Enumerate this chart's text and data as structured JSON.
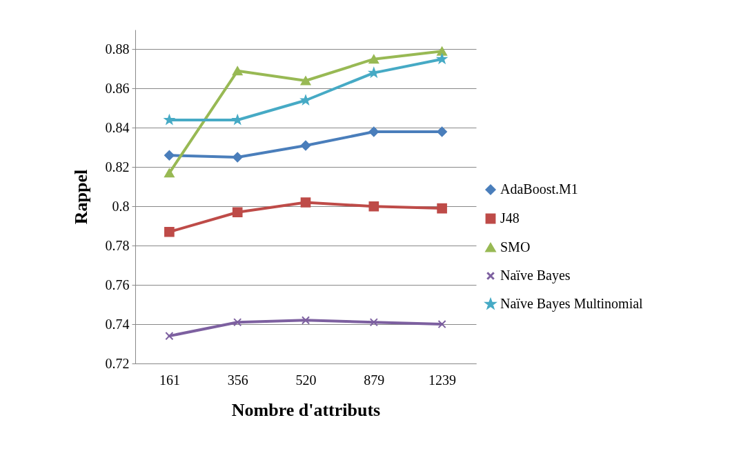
{
  "chart_data": {
    "type": "line",
    "xlabel": "Nombre d'attributs",
    "ylabel": "Rappel",
    "categories": [
      "161",
      "356",
      "520",
      "879",
      "1239"
    ],
    "ylim": [
      0.72,
      0.89
    ],
    "yticks": [
      0.72,
      0.74,
      0.76,
      0.78,
      {
        "value": 0.8,
        "label": "0.8"
      },
      0.82,
      0.84,
      0.86,
      0.88
    ],
    "grid": "y",
    "legend": "right",
    "series": [
      {
        "name": "AdaBoost.M1",
        "color": "#4a7ebb",
        "marker": "diamond",
        "values": [
          0.826,
          0.825,
          0.831,
          0.838,
          0.838
        ]
      },
      {
        "name": "J48",
        "color": "#be4b48",
        "marker": "square",
        "values": [
          0.787,
          0.797,
          0.802,
          0.8,
          0.799
        ]
      },
      {
        "name": "SMO",
        "color": "#98b954",
        "marker": "triangle",
        "values": [
          0.817,
          0.869,
          0.864,
          0.875,
          0.879
        ]
      },
      {
        "name": "Naïve Bayes",
        "color": "#7d60a0",
        "marker": "cross",
        "values": [
          0.734,
          0.741,
          0.742,
          0.741,
          0.74
        ]
      },
      {
        "name": "Naïve Bayes Multinomial",
        "color": "#46aac5",
        "marker": "star",
        "values": [
          0.844,
          0.844,
          0.854,
          0.868,
          0.875
        ]
      }
    ]
  }
}
